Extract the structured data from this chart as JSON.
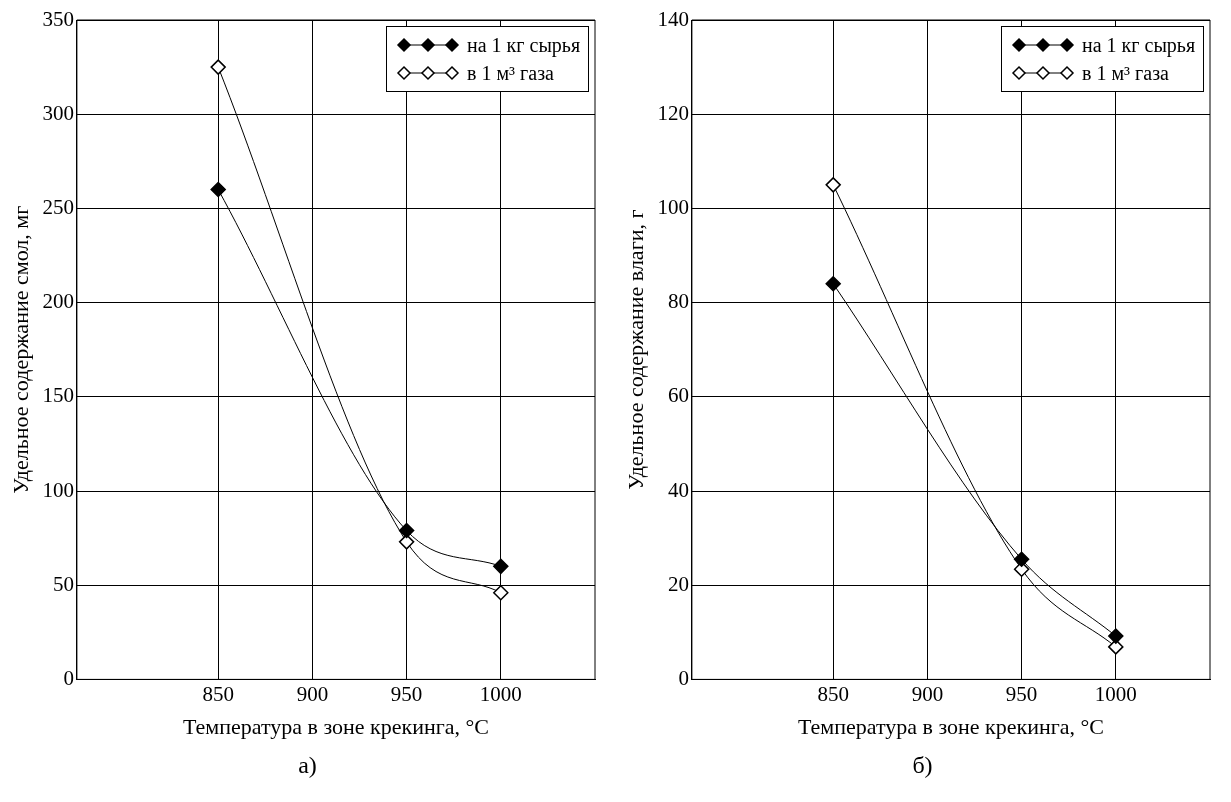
{
  "chart_data": [
    {
      "type": "line",
      "xlabel": "Температура в зоне крекинга, °C",
      "ylabel": "Удельное содержание смол, мг",
      "x": [
        850,
        950,
        1000
      ],
      "series": [
        {
          "name": "на 1 кг сырья",
          "color": "#000000",
          "values": [
            260,
            79,
            60
          ]
        },
        {
          "name": "в 1 м³ газа",
          "color": "#000000",
          "values": [
            325,
            73,
            46
          ]
        }
      ],
      "xlim": [
        775,
        1050
      ],
      "xticks": [
        850,
        900,
        950,
        1000
      ],
      "ylim": [
        0,
        350
      ],
      "yticks": [
        0,
        50,
        100,
        150,
        200,
        250,
        300,
        350
      ],
      "grid": true,
      "legend": "top right",
      "marker": "diamond",
      "annotations": [
        "а)"
      ]
    },
    {
      "type": "line",
      "xlabel": "Температура в зоне крекинга, °C",
      "ylabel": "Удельное содержание влаги, г",
      "x": [
        850,
        950,
        1000
      ],
      "series": [
        {
          "name": "на 1 кг сырья",
          "color": "#000000",
          "values": [
            84,
            25.5,
            9.2
          ]
        },
        {
          "name": "в 1 м³ газа",
          "color": "#000000",
          "values": [
            105,
            23.4,
            6.9
          ]
        }
      ],
      "xlim": [
        775,
        1050
      ],
      "xticks": [
        850,
        900,
        950,
        1000
      ],
      "ylim": [
        0,
        140
      ],
      "yticks": [
        0,
        20,
        40,
        60,
        80,
        100,
        120,
        140
      ],
      "grid": true,
      "legend": "top right",
      "marker": "diamond",
      "annotations": [
        "б)"
      ]
    }
  ]
}
